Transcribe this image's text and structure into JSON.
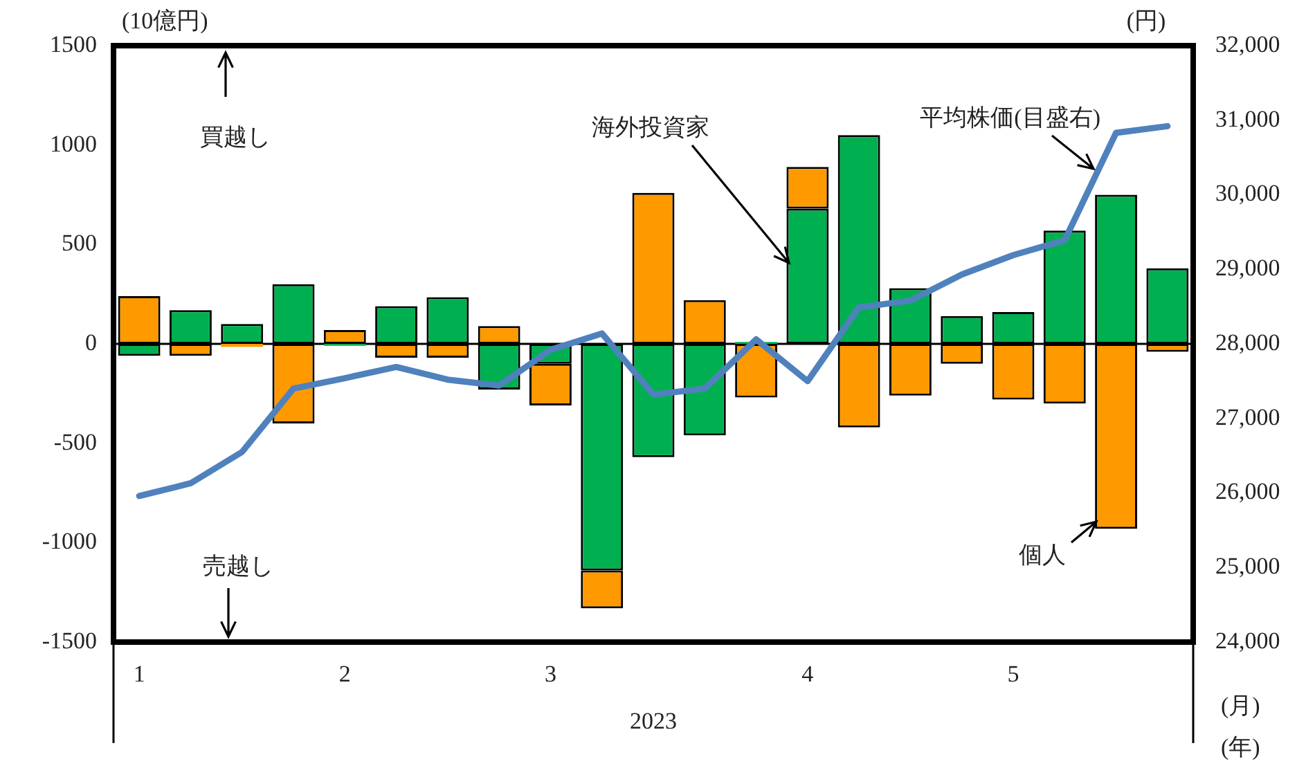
{
  "chart_data": {
    "type": "bar",
    "stacked": true,
    "ylabel": "(10億円)",
    "y2label": "(円)",
    "xlabel": "(月)",
    "categories": [
      "1",
      null,
      null,
      null,
      "2",
      null,
      null,
      null,
      "3",
      null,
      null,
      null,
      null,
      "4",
      null,
      null,
      null,
      "5",
      null,
      null,
      null
    ],
    "series": [
      {
        "name": "海外投資家",
        "color": "#00b050",
        "values": [
          -60,
          170,
          100,
          300,
          -10,
          190,
          235,
          -230,
          -100,
          -1140,
          -570,
          -460,
          10,
          680,
          1050,
          280,
          140,
          160,
          570,
          750,
          380
        ]
      },
      {
        "name": "個人",
        "color": "#ff9900",
        "values": [
          240,
          -60,
          -15,
          -400,
          70,
          -70,
          -70,
          90,
          -210,
          -190,
          760,
          220,
          -270,
          210,
          -420,
          -260,
          -100,
          -280,
          -300,
          -930,
          -40
        ]
      },
      {
        "name": "平均株価(目盛右)",
        "type": "line",
        "axis": "y2",
        "color": "#4f81bd",
        "values": [
          25960,
          26130,
          26550,
          27400,
          27540,
          27690,
          27520,
          27440,
          27920,
          28140,
          27320,
          27400,
          28060,
          27500,
          28490,
          28580,
          28930,
          29190,
          29390,
          30830,
          30920
        ]
      }
    ],
    "ylim": [
      -1500,
      1500
    ],
    "yticks": [
      -1500,
      -1000,
      -500,
      0,
      500,
      1000,
      1500
    ],
    "y2lim": [
      24000,
      32000
    ],
    "y2ticks": [
      {
        "value": 24000,
        "label": "24,000"
      },
      {
        "value": 25000,
        "label": "25,000"
      },
      {
        "value": 26000,
        "label": "26,000"
      },
      {
        "value": 27000,
        "label": "27,000"
      },
      {
        "value": 28000,
        "label": "28,000"
      },
      {
        "value": 29000,
        "label": "29,000"
      },
      {
        "value": 30000,
        "label": "30,000"
      },
      {
        "value": 31000,
        "label": "31,000"
      },
      {
        "value": 32000,
        "label": "32,000"
      }
    ],
    "ref_lines": [
      {
        "axis": "y",
        "value": 0,
        "color": "#000000"
      }
    ],
    "annotations": [
      "買越し",
      "売越し",
      "2023",
      "(年)"
    ],
    "grid": false,
    "legend": false,
    "marker": "none",
    "line_style": "solid"
  }
}
